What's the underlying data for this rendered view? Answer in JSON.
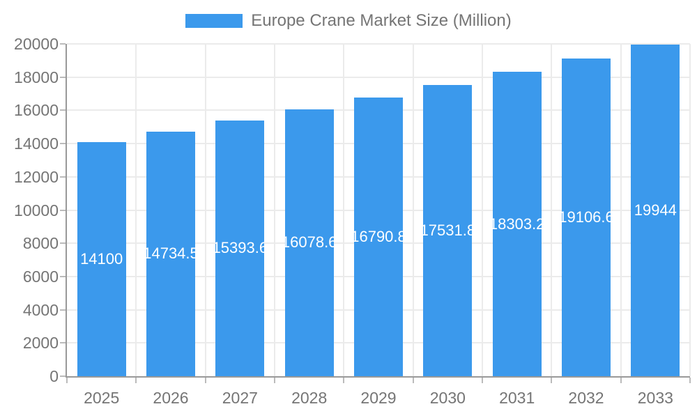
{
  "legend": {
    "label": "Europe Crane Market Size (Million)"
  },
  "chart_data": {
    "type": "bar",
    "title": "Europe Crane Market Size (Million)",
    "categories": [
      "2025",
      "2026",
      "2027",
      "2028",
      "2029",
      "2030",
      "2031",
      "2032",
      "2033"
    ],
    "series": [
      {
        "name": "Europe Crane Market Size (Million)",
        "values": [
          14100,
          14734.5,
          15393.6,
          16078.6,
          16790.8,
          17531.8,
          18303.2,
          19106.6,
          19944
        ],
        "labels": [
          "14100",
          "14734.5",
          "15393.6",
          "16078.6",
          "16790.8",
          "17531.8",
          "18303.2",
          "19106.6",
          "19944"
        ]
      }
    ],
    "xlabel": "",
    "ylabel": "",
    "ylim": [
      0,
      20000
    ],
    "yticks": [
      0,
      2000,
      4000,
      6000,
      8000,
      10000,
      12000,
      14000,
      16000,
      18000,
      20000
    ],
    "grid": true,
    "legend_position": "top",
    "bar_label_position": "inside-center",
    "colors": {
      "bar": "#3B99EC",
      "grid": "#EBEBEB",
      "axis": "#999999",
      "tick": "#BBBBBB",
      "text": "#757575",
      "bar_label": "#FFFFFF",
      "background": "#FFFFFF"
    }
  }
}
